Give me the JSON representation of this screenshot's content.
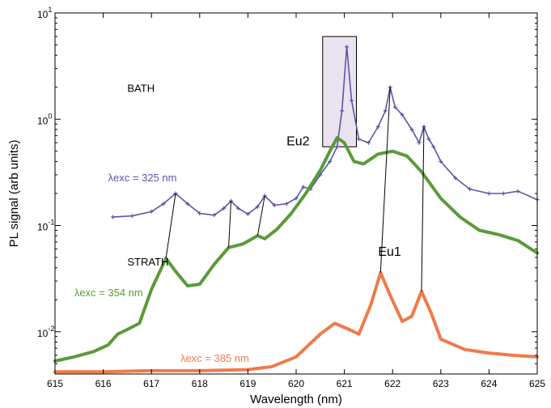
{
  "chart_data": {
    "type": "line",
    "xlabel": "Wavelength (nm)",
    "ylabel": "PL signal (arb units)",
    "xlim": [
      615,
      625
    ],
    "ylim": [
      0.004,
      10
    ],
    "yscale": "log",
    "xticks": [
      "615",
      "616",
      "617",
      "618",
      "619",
      "620",
      "621",
      "622",
      "623",
      "624",
      "625"
    ],
    "yticks": [
      {
        "value": 0.01,
        "base": "10",
        "exp": "-2"
      },
      {
        "value": 0.1,
        "base": "10",
        "exp": "-1"
      },
      {
        "value": 1,
        "base": "10",
        "exp": "0"
      },
      {
        "value": 10,
        "base": "10",
        "exp": "1"
      }
    ],
    "grid": false,
    "series": [
      {
        "name": "λexc = 325 nm",
        "color": "#5a55a8",
        "marker": "+",
        "points": [
          [
            616.2,
            0.12
          ],
          [
            616.6,
            0.123
          ],
          [
            617.0,
            0.135
          ],
          [
            617.25,
            0.16
          ],
          [
            617.5,
            0.2
          ],
          [
            617.75,
            0.16
          ],
          [
            618.0,
            0.13
          ],
          [
            618.3,
            0.125
          ],
          [
            618.5,
            0.145
          ],
          [
            618.65,
            0.17
          ],
          [
            618.8,
            0.145
          ],
          [
            619.0,
            0.128
          ],
          [
            619.2,
            0.15
          ],
          [
            619.35,
            0.19
          ],
          [
            619.55,
            0.155
          ],
          [
            619.8,
            0.16
          ],
          [
            620.0,
            0.18
          ],
          [
            620.15,
            0.23
          ],
          [
            620.3,
            0.22
          ],
          [
            620.5,
            0.3
          ],
          [
            620.7,
            0.4
          ],
          [
            620.85,
            0.55
          ],
          [
            620.95,
            1.2
          ],
          [
            621.05,
            4.8
          ],
          [
            621.15,
            1.5
          ],
          [
            621.3,
            0.65
          ],
          [
            621.5,
            0.6
          ],
          [
            621.7,
            0.85
          ],
          [
            621.85,
            1.2
          ],
          [
            621.95,
            2.0
          ],
          [
            622.05,
            1.3
          ],
          [
            622.2,
            1.1
          ],
          [
            622.4,
            0.8
          ],
          [
            622.55,
            0.6
          ],
          [
            622.65,
            0.85
          ],
          [
            622.75,
            0.65
          ],
          [
            622.85,
            0.55
          ],
          [
            623.0,
            0.4
          ],
          [
            623.3,
            0.28
          ],
          [
            623.6,
            0.22
          ],
          [
            624.0,
            0.2
          ],
          [
            624.3,
            0.2
          ],
          [
            624.6,
            0.21
          ],
          [
            625.0,
            0.175
          ]
        ]
      },
      {
        "name": "λexc = 354 nm",
        "color": "#5a9a3c",
        "marker": "",
        "points": [
          [
            615.0,
            0.0053
          ],
          [
            615.4,
            0.0058
          ],
          [
            615.8,
            0.0065
          ],
          [
            616.1,
            0.0075
          ],
          [
            616.3,
            0.0095
          ],
          [
            616.5,
            0.0105
          ],
          [
            616.75,
            0.012
          ],
          [
            617.0,
            0.025
          ],
          [
            617.3,
            0.049
          ],
          [
            617.5,
            0.037
          ],
          [
            617.75,
            0.027
          ],
          [
            618.0,
            0.028
          ],
          [
            618.3,
            0.043
          ],
          [
            618.6,
            0.062
          ],
          [
            618.9,
            0.067
          ],
          [
            619.2,
            0.08
          ],
          [
            619.35,
            0.075
          ],
          [
            619.6,
            0.092
          ],
          [
            619.9,
            0.13
          ],
          [
            620.2,
            0.2
          ],
          [
            620.5,
            0.33
          ],
          [
            620.7,
            0.5
          ],
          [
            620.85,
            0.67
          ],
          [
            621.0,
            0.6
          ],
          [
            621.2,
            0.4
          ],
          [
            621.4,
            0.38
          ],
          [
            621.7,
            0.47
          ],
          [
            622.0,
            0.5
          ],
          [
            622.3,
            0.45
          ],
          [
            622.6,
            0.32
          ],
          [
            623.0,
            0.18
          ],
          [
            623.4,
            0.12
          ],
          [
            623.8,
            0.09
          ],
          [
            624.2,
            0.082
          ],
          [
            624.6,
            0.072
          ],
          [
            625.0,
            0.055
          ]
        ]
      },
      {
        "name": "λexc = 385 nm",
        "color": "#f07a4a",
        "marker": "",
        "points": [
          [
            615.0,
            0.0042
          ],
          [
            616.0,
            0.0042
          ],
          [
            617.0,
            0.0043
          ],
          [
            618.0,
            0.0043
          ],
          [
            619.0,
            0.0044
          ],
          [
            619.5,
            0.0047
          ],
          [
            620.0,
            0.0058
          ],
          [
            620.5,
            0.0095
          ],
          [
            620.8,
            0.012
          ],
          [
            621.1,
            0.0105
          ],
          [
            621.3,
            0.0095
          ],
          [
            621.55,
            0.018
          ],
          [
            621.75,
            0.036
          ],
          [
            621.95,
            0.022
          ],
          [
            622.2,
            0.0125
          ],
          [
            622.4,
            0.014
          ],
          [
            622.6,
            0.024
          ],
          [
            622.8,
            0.015
          ],
          [
            623.0,
            0.0085
          ],
          [
            623.5,
            0.0068
          ],
          [
            624.0,
            0.0063
          ],
          [
            624.5,
            0.006
          ],
          [
            625.0,
            0.0058
          ]
        ]
      }
    ],
    "connectors": [
      [
        [
          617.5,
          0.2
        ],
        [
          617.3,
          0.049
        ]
      ],
      [
        [
          618.65,
          0.17
        ],
        [
          618.6,
          0.062
        ]
      ],
      [
        [
          619.35,
          0.19
        ],
        [
          619.2,
          0.08
        ]
      ],
      [
        [
          621.95,
          2.0
        ],
        [
          621.75,
          0.036
        ]
      ],
      [
        [
          622.65,
          0.85
        ],
        [
          622.6,
          0.024
        ]
      ]
    ],
    "highlight_box": {
      "x": [
        620.55,
        621.25
      ],
      "y": [
        0.55,
        6.0
      ]
    },
    "annotations": [
      {
        "text": "BATH",
        "x": 616.5,
        "y": 1.8,
        "color": "#000000",
        "size": 13
      },
      {
        "text": "STRATH",
        "x": 616.5,
        "y": 0.042,
        "color": "#000000",
        "size": 13
      },
      {
        "text": "λexc = 325 nm",
        "x": 616.1,
        "y": 0.26,
        "color": "#5a55a8",
        "size": 13
      },
      {
        "text": "λexc = 354 nm",
        "x": 615.4,
        "y": 0.0215,
        "color": "#5a9a3c",
        "size": 13
      },
      {
        "text": "λexc = 385 nm",
        "x": 617.6,
        "y": 0.0052,
        "color": "#f07a4a",
        "size": 13
      },
      {
        "text": "Eu2",
        "x": 619.8,
        "y": 0.57,
        "color": "#000000",
        "size": 16
      },
      {
        "text": "Eu1",
        "x": 621.7,
        "y": 0.052,
        "color": "#000000",
        "size": 16
      }
    ]
  }
}
